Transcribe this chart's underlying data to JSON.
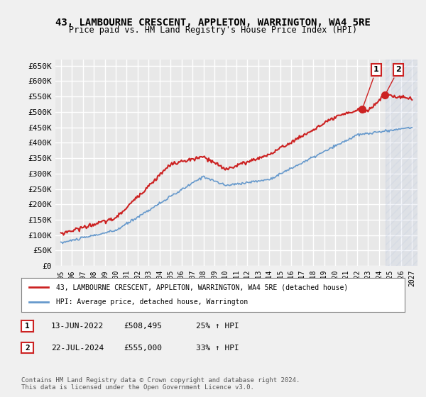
{
  "title": "43, LAMBOURNE CRESCENT, APPLETON, WARRINGTON, WA4 5RE",
  "subtitle": "Price paid vs. HM Land Registry's House Price Index (HPI)",
  "ylabel": "",
  "background_color": "#f0f0f0",
  "plot_bg_color": "#e8e8e8",
  "grid_color": "#ffffff",
  "ylim": [
    0,
    670000
  ],
  "yticks": [
    0,
    50000,
    100000,
    150000,
    200000,
    250000,
    300000,
    350000,
    400000,
    450000,
    500000,
    550000,
    600000,
    650000
  ],
  "ytick_labels": [
    "£0",
    "£50K",
    "£100K",
    "£150K",
    "£200K",
    "£250K",
    "£300K",
    "£350K",
    "£400K",
    "£450K",
    "£500K",
    "£550K",
    "£600K",
    "£650K"
  ],
  "sale1_date": "13-JUN-2022",
  "sale1_price": 508495,
  "sale1_pct": "25%",
  "sale2_date": "22-JUL-2024",
  "sale2_price": 555000,
  "sale2_pct": "33%",
  "legend_label1": "43, LAMBOURNE CRESCENT, APPLETON, WARRINGTON, WA4 5RE (detached house)",
  "legend_label2": "HPI: Average price, detached house, Warrington",
  "footer": "Contains HM Land Registry data © Crown copyright and database right 2024.\nThis data is licensed under the Open Government Licence v3.0.",
  "hpi_color": "#6699cc",
  "property_color": "#cc2222",
  "marker1_color": "#cc2222",
  "marker2_color": "#cc2222",
  "annotation_bg": "#ddeeff"
}
